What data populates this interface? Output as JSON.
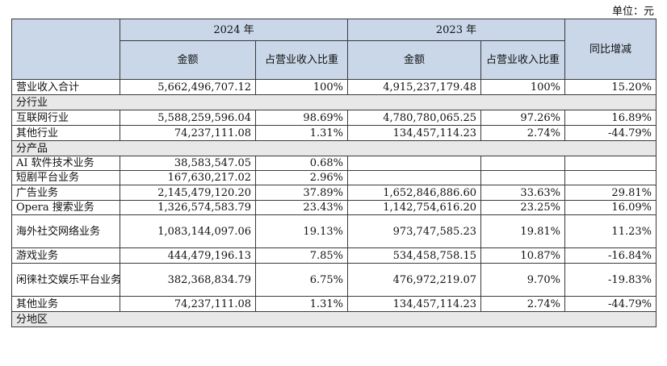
{
  "unit_label": "单位：元",
  "header": {
    "year_2024": "2024 年",
    "year_2023": "2023 年",
    "yoy": "同比增减",
    "amount": "金额",
    "share": "占营业收入比重"
  },
  "total": {
    "label": "营业收入合计",
    "amt_2024": "5,662,496,707.12",
    "pct_2024": "100%",
    "amt_2023": "4,915,237,179.48",
    "pct_2023": "100%",
    "yoy": "15.20%"
  },
  "sections": {
    "industry": "分行业",
    "product": "分产品",
    "region": "分地区"
  },
  "industry_rows": [
    {
      "label": "互联网行业",
      "amt_2024": "5,588,259,596.04",
      "pct_2024": "98.69%",
      "amt_2023": "4,780,780,065.25",
      "pct_2023": "97.26%",
      "yoy": "16.89%"
    },
    {
      "label": "其他行业",
      "amt_2024": "74,237,111.08",
      "pct_2024": "1.31%",
      "amt_2023": "134,457,114.23",
      "pct_2023": "2.74%",
      "yoy": "-44.79%"
    }
  ],
  "product_rows": [
    {
      "label": "AI 软件技术业务",
      "amt_2024": "38,583,547.05",
      "pct_2024": "0.68%",
      "amt_2023": "",
      "pct_2023": "",
      "yoy": ""
    },
    {
      "label": "短剧平台业务",
      "amt_2024": "167,630,217.02",
      "pct_2024": "2.96%",
      "amt_2023": "",
      "pct_2023": "",
      "yoy": ""
    },
    {
      "label": "广告业务",
      "amt_2024": "2,145,479,120.20",
      "pct_2024": "37.89%",
      "amt_2023": "1,652,846,886.60",
      "pct_2023": "33.63%",
      "yoy": "29.81%"
    },
    {
      "label": "Opera 搜索业务",
      "amt_2024": "1,326,574,583.79",
      "pct_2024": "23.43%",
      "amt_2023": "1,142,754,616.20",
      "pct_2023": "23.25%",
      "yoy": "16.09%"
    },
    {
      "label": "海外社交网络业务",
      "amt_2024": "1,083,144,097.06",
      "pct_2024": "19.13%",
      "amt_2023": "973,747,585.23",
      "pct_2023": "19.81%",
      "yoy": "11.23%"
    },
    {
      "label": "游戏业务",
      "amt_2024": "444,479,196.13",
      "pct_2024": "7.85%",
      "amt_2023": "534,458,758.15",
      "pct_2023": "10.87%",
      "yoy": "-16.84%"
    },
    {
      "label": "闲徕社交娱乐平台业务",
      "amt_2024": "382,368,834.79",
      "pct_2024": "6.75%",
      "amt_2023": "476,972,219.07",
      "pct_2023": "9.70%",
      "yoy": "-19.83%"
    },
    {
      "label": "其他业务",
      "amt_2024": "74,237,111.08",
      "pct_2024": "1.31%",
      "amt_2023": "134,457,114.23",
      "pct_2023": "2.74%",
      "yoy": "-44.79%"
    }
  ],
  "colors": {
    "header_bg": "#c9d7e9",
    "section_bg": "#e8e8e8",
    "border": "#3a3a3a"
  }
}
